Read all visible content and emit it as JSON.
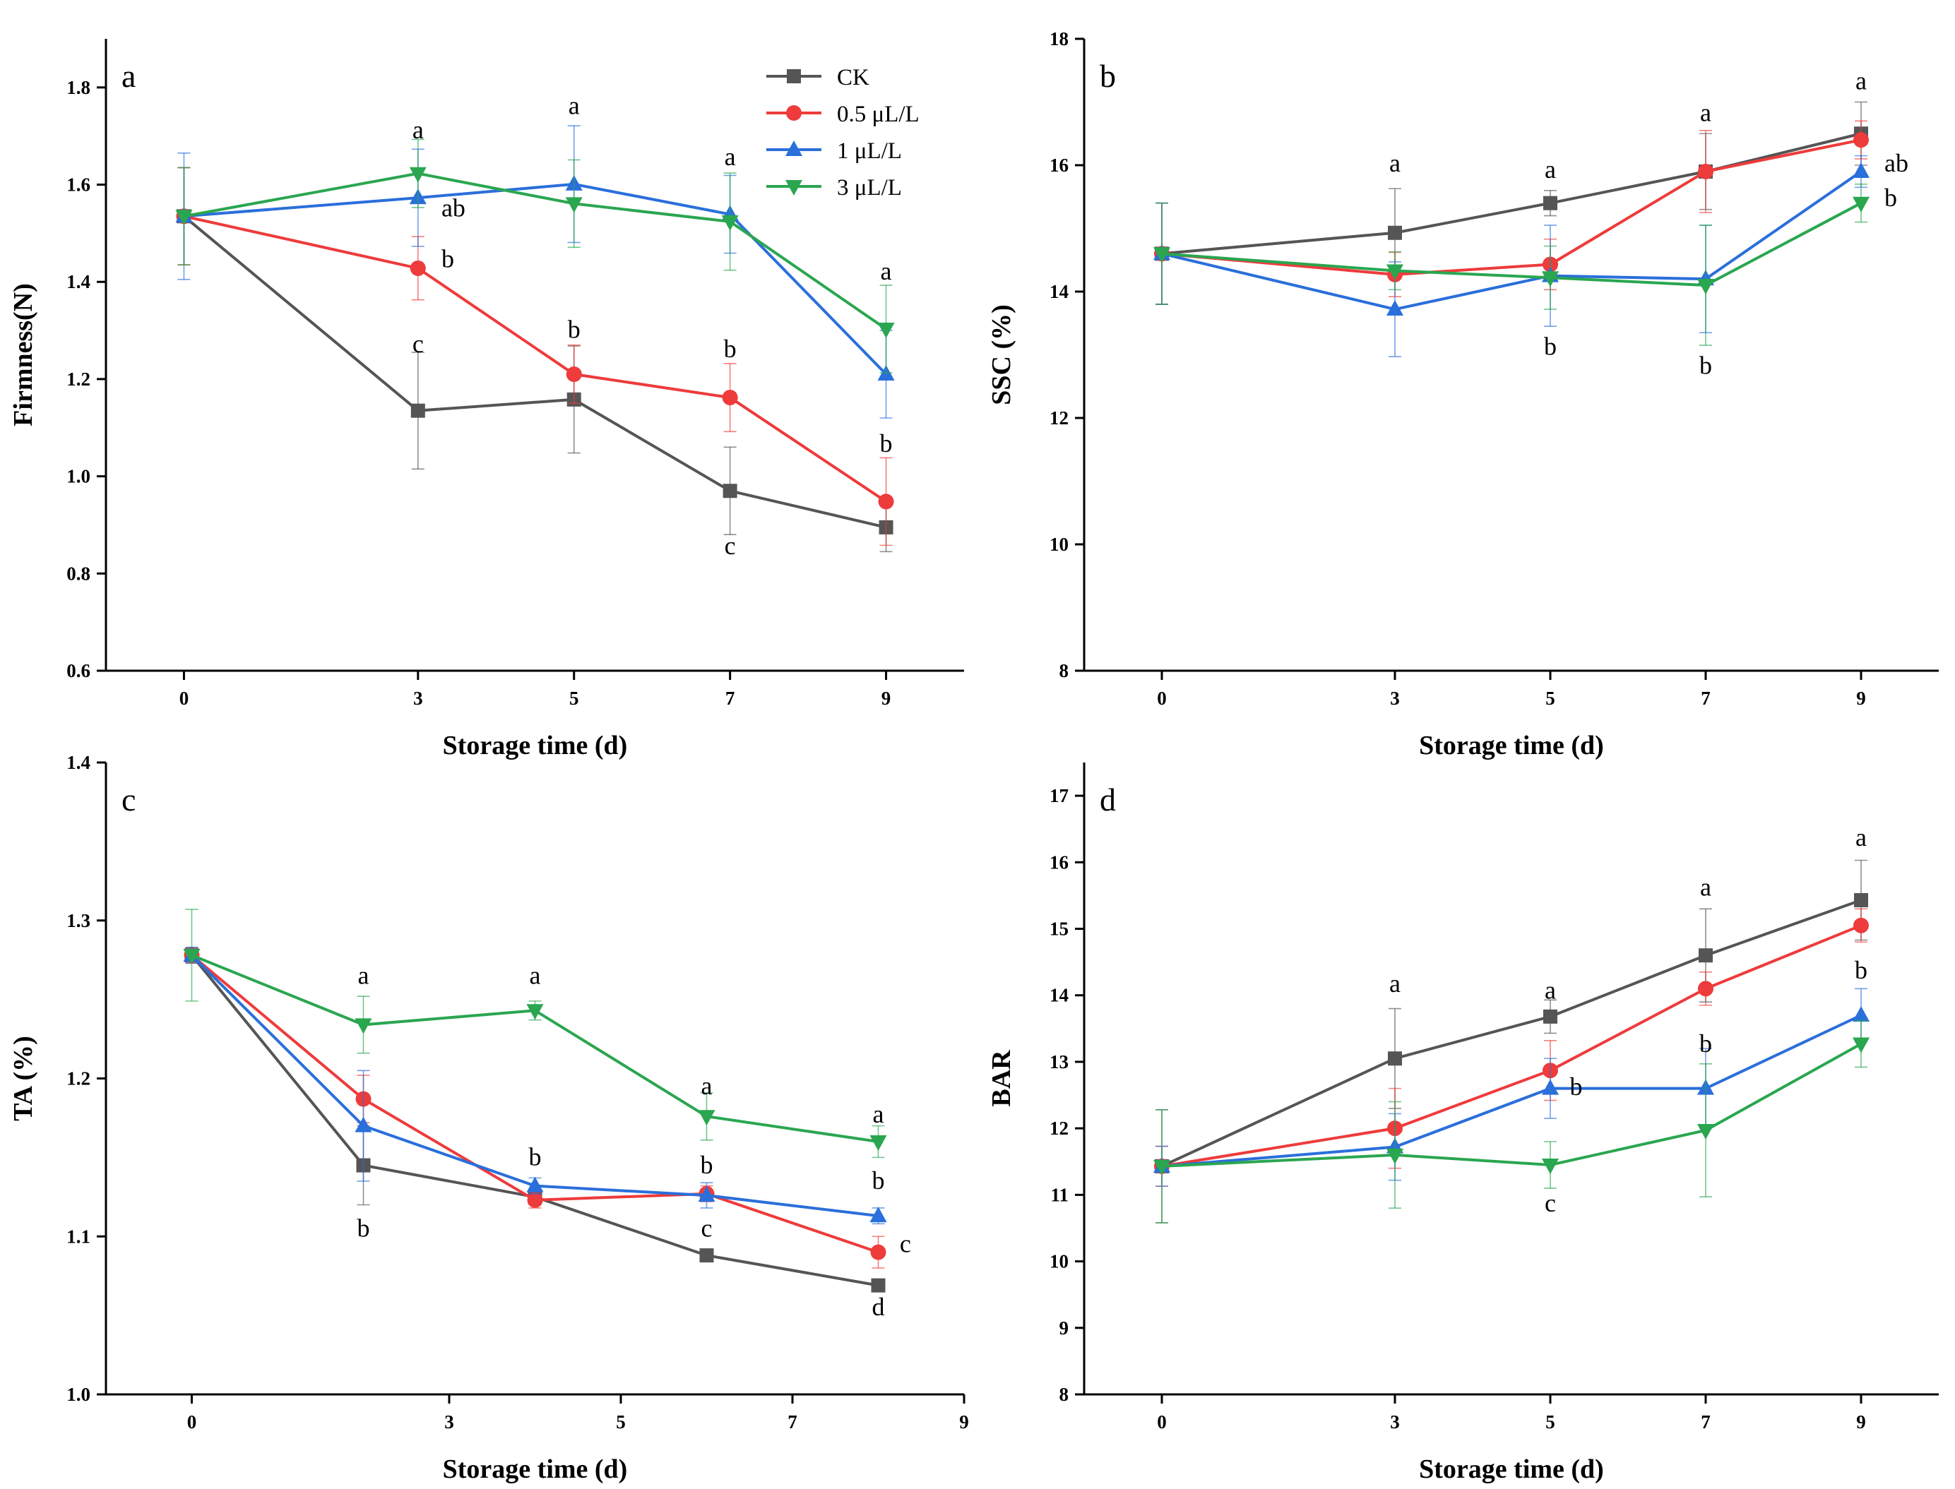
{
  "legend": {
    "entries": [
      "CK",
      "0.5 μL/L",
      "1 μL/L",
      "3 μL/L"
    ]
  },
  "series_style": {
    "CK": {
      "color": "#555555",
      "marker": "square"
    },
    "0.5 μL/L": {
      "color": "#ee3b3b",
      "marker": "circle"
    },
    "1 μL/L": {
      "color": "#2a6fdb",
      "marker": "triangle-up"
    },
    "3 μL/L": {
      "color": "#2aa650",
      "marker": "triangle-down"
    }
  },
  "chart_data": [
    {
      "type": "line",
      "panel": "a",
      "xlabel": "Storage time (d)",
      "ylabel": "Firmness(N)",
      "xlim": [
        -1,
        10
      ],
      "ylim": [
        0.6,
        1.9
      ],
      "xticks": [
        0,
        3,
        5,
        7,
        9
      ],
      "yticks": [
        0.6,
        0.8,
        1.0,
        1.2,
        1.4,
        1.6,
        1.8
      ],
      "ytick_labels": [
        "0.6",
        "0.8",
        "1.0",
        "1.2",
        "1.4",
        "1.6",
        "1.8"
      ],
      "show_legend": true,
      "series": [
        {
          "name": "CK",
          "x": [
            0,
            3,
            5,
            7,
            9
          ],
          "y": [
            1.535,
            1.135,
            1.158,
            0.97,
            0.895
          ],
          "err": [
            0.1,
            0.12,
            0.11,
            0.09,
            0.05
          ]
        },
        {
          "name": "0.5 μL/L",
          "x": [
            0,
            3,
            5,
            7,
            9
          ],
          "y": [
            1.535,
            1.428,
            1.21,
            1.162,
            0.948
          ],
          "err": [
            0.1,
            0.065,
            0.06,
            0.07,
            0.09
          ]
        },
        {
          "name": "1 μL/L",
          "x": [
            0,
            3,
            5,
            7,
            9
          ],
          "y": [
            1.535,
            1.573,
            1.601,
            1.539,
            1.21
          ],
          "err": [
            0.13,
            0.1,
            0.12,
            0.08,
            0.09
          ]
        },
        {
          "name": "3 μL/L",
          "x": [
            0,
            3,
            5,
            7,
            9
          ],
          "y": [
            1.535,
            1.623,
            1.561,
            1.524,
            1.303
          ],
          "err": [
            0.1,
            0.07,
            0.09,
            0.1,
            0.09
          ]
        }
      ],
      "annotations": [
        {
          "text": "a",
          "x": 3,
          "y": 1.695,
          "align": "center"
        },
        {
          "text": "ab",
          "x": 3.3,
          "y": 1.535,
          "align": "start"
        },
        {
          "text": "b",
          "x": 3.3,
          "y": 1.43,
          "align": "start"
        },
        {
          "text": "c",
          "x": 3,
          "y": 1.255,
          "align": "center"
        },
        {
          "text": "a",
          "x": 5,
          "y": 1.745,
          "align": "center"
        },
        {
          "text": "b",
          "x": 5,
          "y": 1.285,
          "align": "center"
        },
        {
          "text": "a",
          "x": 7,
          "y": 1.64,
          "align": "center"
        },
        {
          "text": "b",
          "x": 7,
          "y": 1.245,
          "align": "center"
        },
        {
          "text": "c",
          "x": 7,
          "y": 0.84,
          "align": "center"
        },
        {
          "text": "a",
          "x": 9,
          "y": 1.405,
          "align": "center"
        },
        {
          "text": "b",
          "x": 9,
          "y": 1.05,
          "align": "center"
        }
      ]
    },
    {
      "type": "line",
      "panel": "b",
      "xlabel": "Storage time (d)",
      "ylabel": "SSC (%)",
      "xlim": [
        -1,
        10
      ],
      "ylim": [
        8,
        18
      ],
      "xticks": [
        0,
        3,
        5,
        7,
        9
      ],
      "yticks": [
        8,
        10,
        12,
        14,
        16,
        18
      ],
      "ytick_labels": [
        "8",
        "10",
        "12",
        "14",
        "16",
        "18"
      ],
      "show_legend": false,
      "series": [
        {
          "name": "CK",
          "x": [
            0,
            3,
            5,
            7,
            9
          ],
          "y": [
            14.6,
            14.93,
            15.4,
            15.9,
            16.5
          ],
          "err": [
            0.8,
            0.7,
            0.2,
            0.6,
            0.5
          ]
        },
        {
          "name": "0.5 μL/L",
          "x": [
            0,
            3,
            5,
            7,
            9
          ],
          "y": [
            14.6,
            14.27,
            14.43,
            15.9,
            16.4
          ],
          "err": [
            0.8,
            0.35,
            0.4,
            0.65,
            0.3
          ]
        },
        {
          "name": "1 μL/L",
          "x": [
            0,
            3,
            5,
            7,
            9
          ],
          "y": [
            14.6,
            13.72,
            14.25,
            14.2,
            15.9
          ],
          "err": [
            0.8,
            0.75,
            0.8,
            0.85,
            0.25
          ]
        },
        {
          "name": "3 μL/L",
          "x": [
            0,
            3,
            5,
            7,
            9
          ],
          "y": [
            14.6,
            14.33,
            14.22,
            14.1,
            15.4
          ],
          "err": [
            0.8,
            0.3,
            0.5,
            0.95,
            0.3
          ]
        }
      ],
      "annotations": [
        {
          "text": "a",
          "x": 3,
          "y": 15.9,
          "align": "center"
        },
        {
          "text": "a",
          "x": 5,
          "y": 15.8,
          "align": "center"
        },
        {
          "text": "b",
          "x": 5,
          "y": 13.0,
          "align": "center"
        },
        {
          "text": "a",
          "x": 7,
          "y": 16.7,
          "align": "center"
        },
        {
          "text": "b",
          "x": 7,
          "y": 12.7,
          "align": "center"
        },
        {
          "text": "a",
          "x": 9,
          "y": 17.2,
          "align": "center"
        },
        {
          "text": "ab",
          "x": 9.3,
          "y": 15.9,
          "align": "start"
        },
        {
          "text": "b",
          "x": 9.3,
          "y": 15.35,
          "align": "start"
        }
      ]
    },
    {
      "type": "line",
      "panel": "c",
      "xlabel": "Storage time (d)",
      "ylabel": "TA (%)",
      "xlim": [
        -1,
        9
      ],
      "ylim": [
        1.0,
        1.4
      ],
      "xticks": [
        0,
        3,
        5,
        7,
        9
      ],
      "yticks": [
        1.0,
        1.1,
        1.2,
        1.3,
        1.4
      ],
      "ytick_labels": [
        "1.0",
        "1.1",
        "1.2",
        "1.3",
        "1.4"
      ],
      "show_legend": false,
      "series": [
        {
          "name": "CK",
          "x": [
            0,
            2,
            4,
            6,
            8
          ],
          "y": [
            1.278,
            1.145,
            1.125,
            1.088,
            1.069
          ],
          "err": [
            0.005,
            0.025,
            0.005,
            0.003,
            0.003
          ]
        },
        {
          "name": "0.5 μL/L",
          "x": [
            0,
            2,
            4,
            6,
            8
          ],
          "y": [
            1.278,
            1.187,
            1.123,
            1.127,
            1.09
          ],
          "err": [
            0.005,
            0.015,
            0.005,
            0.005,
            0.01
          ]
        },
        {
          "name": "1 μL/L",
          "x": [
            0,
            2,
            4,
            6,
            8
          ],
          "y": [
            1.278,
            1.17,
            1.132,
            1.126,
            1.113
          ],
          "err": [
            0.005,
            0.035,
            0.005,
            0.008,
            0.005
          ]
        },
        {
          "name": "3 μL/L",
          "x": [
            0,
            2,
            4,
            6,
            8
          ],
          "y": [
            1.278,
            1.234,
            1.243,
            1.176,
            1.16
          ],
          "err": [
            0.029,
            0.018,
            0.006,
            0.015,
            0.01
          ]
        }
      ],
      "annotations": [
        {
          "text": "a",
          "x": 2,
          "y": 1.26,
          "align": "center"
        },
        {
          "text": "b",
          "x": 2,
          "y": 1.1,
          "align": "center"
        },
        {
          "text": "a",
          "x": 4,
          "y": 1.26,
          "align": "center"
        },
        {
          "text": "b",
          "x": 4,
          "y": 1.145,
          "align": "center"
        },
        {
          "text": "a",
          "x": 6,
          "y": 1.19,
          "align": "center"
        },
        {
          "text": "b",
          "x": 6,
          "y": 1.14,
          "align": "center"
        },
        {
          "text": "c",
          "x": 6,
          "y": 1.1,
          "align": "center"
        },
        {
          "text": "a",
          "x": 8,
          "y": 1.172,
          "align": "center"
        },
        {
          "text": "b",
          "x": 8,
          "y": 1.13,
          "align": "center"
        },
        {
          "text": "c",
          "x": 8.25,
          "y": 1.09,
          "align": "start"
        },
        {
          "text": "d",
          "x": 8,
          "y": 1.05,
          "align": "center"
        }
      ]
    },
    {
      "type": "line",
      "panel": "d",
      "xlabel": "Storage time (d)",
      "ylabel": "BAR",
      "xlim": [
        -1,
        10
      ],
      "ylim": [
        8,
        17.5
      ],
      "xticks": [
        0,
        3,
        5,
        7,
        9
      ],
      "yticks": [
        8,
        9,
        10,
        11,
        12,
        13,
        14,
        15,
        16,
        17
      ],
      "ytick_labels": [
        "8",
        "9",
        "10",
        "11",
        "12",
        "13",
        "14",
        "15",
        "16",
        "17"
      ],
      "show_legend": false,
      "series": [
        {
          "name": "CK",
          "x": [
            0,
            3,
            5,
            7,
            9
          ],
          "y": [
            11.43,
            13.05,
            13.68,
            14.6,
            15.43
          ],
          "err": [
            0.85,
            0.75,
            0.25,
            0.7,
            0.6
          ]
        },
        {
          "name": "0.5 μL/L",
          "x": [
            0,
            3,
            5,
            7,
            9
          ],
          "y": [
            11.43,
            12.0,
            12.87,
            14.1,
            15.05
          ],
          "err": [
            0.3,
            0.6,
            0.45,
            0.25,
            0.25
          ]
        },
        {
          "name": "1 μL/L",
          "x": [
            0,
            3,
            5,
            7,
            9
          ],
          "y": [
            11.43,
            11.72,
            12.6,
            12.6,
            13.7
          ],
          "err": [
            0.3,
            0.5,
            0.45,
            0.6,
            0.4
          ]
        },
        {
          "name": "3 μL/L",
          "x": [
            0,
            3,
            5,
            7,
            9
          ],
          "y": [
            11.43,
            11.6,
            11.45,
            11.97,
            13.27
          ],
          "err": [
            0.85,
            0.8,
            0.35,
            1.0,
            0.35
          ]
        }
      ],
      "annotations": [
        {
          "text": "a",
          "x": 3,
          "y": 14.05,
          "align": "center"
        },
        {
          "text": "a",
          "x": 5,
          "y": 13.95,
          "align": "center"
        },
        {
          "text": "b",
          "x": 5.25,
          "y": 12.5,
          "align": "start"
        },
        {
          "text": "c",
          "x": 5,
          "y": 10.75,
          "align": "center"
        },
        {
          "text": "a",
          "x": 7,
          "y": 15.5,
          "align": "center"
        },
        {
          "text": "b",
          "x": 7,
          "y": 13.15,
          "align": "center"
        },
        {
          "text": "a",
          "x": 9,
          "y": 16.25,
          "align": "center"
        },
        {
          "text": "b",
          "x": 9,
          "y": 14.25,
          "align": "center"
        }
      ]
    }
  ]
}
